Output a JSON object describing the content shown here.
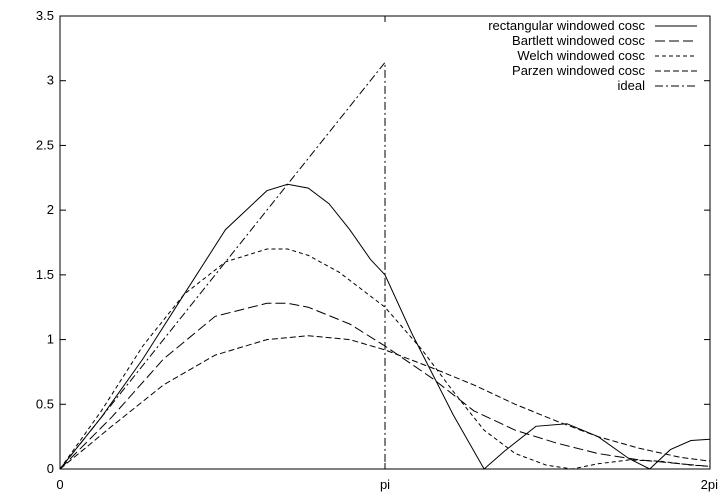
{
  "chart_data": {
    "type": "line",
    "title": "",
    "xlabel": "",
    "ylabel": "",
    "xlim": [
      0,
      6.2832
    ],
    "ylim": [
      0,
      3.5
    ],
    "grid": false,
    "legend_position": "top-right",
    "x_ticks": [
      {
        "value": 0,
        "label": "0"
      },
      {
        "value": 3.1416,
        "label": "pi"
      },
      {
        "value": 6.2832,
        "label": "2pi"
      }
    ],
    "y_ticks": [
      {
        "value": 0,
        "label": "0"
      },
      {
        "value": 0.5,
        "label": "0.5"
      },
      {
        "value": 1,
        "label": "1"
      },
      {
        "value": 1.5,
        "label": "1.5"
      },
      {
        "value": 2,
        "label": "2"
      },
      {
        "value": 2.5,
        "label": "2.5"
      },
      {
        "value": 3,
        "label": "3"
      },
      {
        "value": 3.5,
        "label": "3.5"
      }
    ],
    "series": [
      {
        "name": "rectangular windowed cosc",
        "dash": "",
        "x": [
          0,
          0.4,
          0.8,
          1.2,
          1.6,
          2.0,
          2.2,
          2.4,
          2.6,
          2.8,
          3.0,
          3.1416,
          3.4,
          3.8,
          4.1,
          4.3,
          4.6,
          4.9,
          5.2,
          5.5,
          5.7,
          5.9,
          6.1,
          6.2832
        ],
        "y": [
          0,
          0.4,
          0.85,
          1.35,
          1.85,
          2.15,
          2.2,
          2.17,
          2.05,
          1.85,
          1.62,
          1.5,
          1.05,
          0.42,
          0.0,
          0.14,
          0.33,
          0.35,
          0.25,
          0.08,
          0.0,
          0.15,
          0.22,
          0.23
        ]
      },
      {
        "name": "Bartlett windowed cosc",
        "dash": "10 4",
        "x": [
          0,
          0.5,
          1.0,
          1.5,
          2.0,
          2.2,
          2.4,
          2.8,
          3.1416,
          3.6,
          4.0,
          4.4,
          4.8,
          5.2,
          5.6,
          6.0,
          6.2832
        ],
        "y": [
          0,
          0.4,
          0.85,
          1.18,
          1.28,
          1.28,
          1.25,
          1.12,
          0.95,
          0.7,
          0.45,
          0.3,
          0.2,
          0.12,
          0.07,
          0.04,
          0.02
        ]
      },
      {
        "name": "Welch windowed cosc",
        "dash": "4 3",
        "x": [
          0,
          0.4,
          0.8,
          1.2,
          1.6,
          2.0,
          2.2,
          2.4,
          2.7,
          3.1416,
          3.5,
          3.8,
          4.1,
          4.4,
          4.7,
          4.95,
          5.2,
          5.5,
          5.8,
          6.1,
          6.2832
        ],
        "y": [
          0,
          0.45,
          0.95,
          1.35,
          1.6,
          1.7,
          1.7,
          1.65,
          1.52,
          1.25,
          0.92,
          0.6,
          0.3,
          0.12,
          0.03,
          0.0,
          0.04,
          0.07,
          0.06,
          0.03,
          0.02
        ]
      },
      {
        "name": "Parzen windowed cosc",
        "dash": "6 3",
        "x": [
          0,
          0.5,
          1.0,
          1.5,
          2.0,
          2.4,
          2.8,
          3.1416,
          3.6,
          4.0,
          4.4,
          4.8,
          5.2,
          5.6,
          6.0,
          6.2832
        ],
        "y": [
          0,
          0.33,
          0.65,
          0.88,
          1.0,
          1.03,
          1.0,
          0.92,
          0.78,
          0.65,
          0.5,
          0.37,
          0.25,
          0.16,
          0.09,
          0.06
        ]
      },
      {
        "name": "ideal",
        "dash": "8 3 2 3",
        "x": [
          0,
          3.1416,
          3.1416
        ],
        "y": [
          0,
          3.1416,
          0
        ]
      }
    ]
  }
}
